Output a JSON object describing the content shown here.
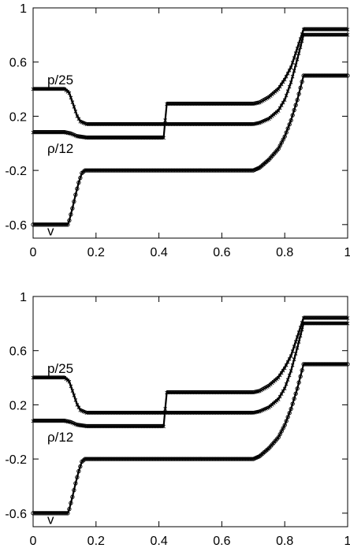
{
  "chart_data": [
    {
      "type": "line",
      "title": "",
      "xlabel": "",
      "ylabel": "",
      "xlim": [
        0,
        1
      ],
      "ylim": [
        -0.7,
        1
      ],
      "xticks": [
        "0",
        "0.2",
        "0.4",
        "0.6",
        "0.8",
        "1"
      ],
      "yticks": [
        "-0.6",
        "-0.2",
        "0.2",
        "0.6",
        "1"
      ],
      "grid": false,
      "annotations": [
        "p/25",
        "ρ/12",
        "v"
      ],
      "series": [
        {
          "name": "p/25",
          "marker": "x",
          "x": [
            0,
            0.1,
            0.115,
            0.13,
            0.14,
            0.15,
            0.17,
            0.3,
            0.42,
            0.5,
            0.6,
            0.7,
            0.72,
            0.75,
            0.78,
            0.8,
            0.82,
            0.84,
            0.86,
            0.9,
            1
          ],
          "values": [
            0.4,
            0.4,
            0.37,
            0.27,
            0.2,
            0.16,
            0.14,
            0.14,
            0.14,
            0.14,
            0.14,
            0.14,
            0.15,
            0.18,
            0.24,
            0.32,
            0.45,
            0.62,
            0.8,
            0.8,
            0.8
          ]
        },
        {
          "name": "ρ/12",
          "marker": "x",
          "x": [
            0,
            0.1,
            0.12,
            0.14,
            0.17,
            0.3,
            0.415,
            0.42,
            0.425,
            0.5,
            0.6,
            0.7,
            0.72,
            0.75,
            0.78,
            0.8,
            0.82,
            0.84,
            0.86,
            0.9,
            1
          ],
          "values": [
            0.08,
            0.08,
            0.07,
            0.05,
            0.04,
            0.04,
            0.04,
            0.17,
            0.29,
            0.29,
            0.29,
            0.29,
            0.3,
            0.34,
            0.4,
            0.47,
            0.56,
            0.7,
            0.84,
            0.84,
            0.84
          ]
        },
        {
          "name": "v",
          "marker": "o",
          "x": [
            0,
            0.11,
            0.115,
            0.125,
            0.135,
            0.145,
            0.155,
            0.165,
            0.3,
            0.5,
            0.7,
            0.72,
            0.75,
            0.78,
            0.8,
            0.82,
            0.84,
            0.86,
            0.9,
            1
          ],
          "values": [
            -0.6,
            -0.6,
            -0.57,
            -0.48,
            -0.38,
            -0.29,
            -0.22,
            -0.2,
            -0.2,
            -0.2,
            -0.2,
            -0.18,
            -0.12,
            -0.04,
            0.05,
            0.17,
            0.32,
            0.5,
            0.5,
            0.5
          ]
        }
      ]
    },
    {
      "type": "line",
      "title": "",
      "xlabel": "",
      "ylabel": "",
      "xlim": [
        0,
        1
      ],
      "ylim": [
        -0.7,
        1
      ],
      "xticks": [
        "0",
        "0.2",
        "0.4",
        "0.6",
        "0.8",
        "1"
      ],
      "yticks": [
        "-0.6",
        "-0.2",
        "0.2",
        "0.6",
        "1"
      ],
      "grid": false,
      "annotations": [
        "p/25",
        "ρ/12",
        "v"
      ],
      "series": [
        {
          "name": "p/25",
          "marker": "x",
          "x": [
            0,
            0.1,
            0.115,
            0.13,
            0.14,
            0.15,
            0.17,
            0.3,
            0.42,
            0.5,
            0.6,
            0.7,
            0.72,
            0.75,
            0.78,
            0.8,
            0.82,
            0.84,
            0.86,
            0.9,
            1
          ],
          "values": [
            0.4,
            0.4,
            0.37,
            0.27,
            0.2,
            0.16,
            0.14,
            0.14,
            0.14,
            0.14,
            0.14,
            0.14,
            0.15,
            0.18,
            0.24,
            0.32,
            0.45,
            0.62,
            0.8,
            0.8,
            0.8
          ]
        },
        {
          "name": "ρ/12",
          "marker": "x",
          "x": [
            0,
            0.1,
            0.12,
            0.14,
            0.17,
            0.3,
            0.415,
            0.42,
            0.425,
            0.5,
            0.6,
            0.7,
            0.72,
            0.75,
            0.78,
            0.8,
            0.82,
            0.84,
            0.86,
            0.9,
            1
          ],
          "values": [
            0.08,
            0.08,
            0.07,
            0.05,
            0.04,
            0.04,
            0.04,
            0.17,
            0.29,
            0.29,
            0.29,
            0.29,
            0.3,
            0.34,
            0.4,
            0.47,
            0.56,
            0.7,
            0.84,
            0.84,
            0.84
          ]
        },
        {
          "name": "v",
          "marker": "o",
          "x": [
            0,
            0.11,
            0.115,
            0.125,
            0.135,
            0.145,
            0.155,
            0.165,
            0.3,
            0.5,
            0.7,
            0.72,
            0.75,
            0.78,
            0.8,
            0.82,
            0.84,
            0.86,
            0.9,
            1
          ],
          "values": [
            -0.6,
            -0.6,
            -0.57,
            -0.48,
            -0.38,
            -0.29,
            -0.22,
            -0.2,
            -0.2,
            -0.2,
            -0.2,
            -0.18,
            -0.12,
            -0.04,
            0.05,
            0.17,
            0.32,
            0.5,
            0.5,
            0.5
          ]
        }
      ]
    }
  ]
}
